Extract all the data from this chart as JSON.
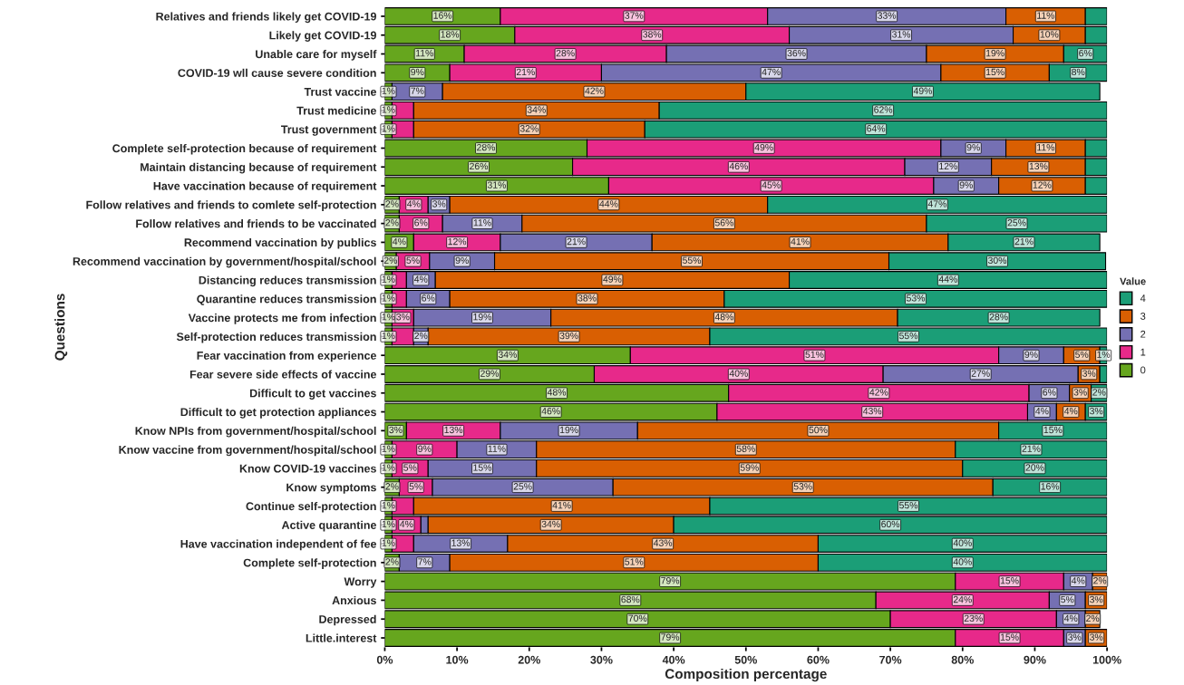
{
  "chart_data": {
    "type": "bar",
    "orientation": "horizontal",
    "stacked": true,
    "xlabel": "Composition percentage",
    "ylabel": "Questions",
    "legend_title": "Value",
    "legend": "right",
    "grid": false,
    "categories": [
      "Relatives and friends likely get COVID-19",
      "Likely get COVID-19",
      "Unable care for myself",
      "COVID-19 wll cause severe condition",
      "Trust vaccine",
      "Trust medicine",
      "Trust government",
      "Complete self-protection because of requirement",
      "Maintain distancing because of requirement",
      "Have vaccination because of requirement",
      "Follow relatives and friends to comlete self-protection",
      "Follow relatives and friends to be vaccinated",
      "Recommend vaccination by publics",
      "Recommend vaccination by government/hospital/school",
      "Distancing reduces transmission",
      "Quarantine reduces transmission",
      "Vaccine protects me from infection",
      "Self-protection reduces transmission",
      "Fear vaccination from experience",
      "Fear severe side effects of vaccine",
      "Difficult to get vaccines",
      "Difficult to get protection appliances",
      "Know NPIs from government/hospital/school",
      "Know vaccine from government/hospital/school",
      "Know COVID-19 vaccines",
      "Know symptoms",
      "Continue self-protection",
      "Active quarantine",
      "Have vaccination independent of fee",
      "Complete self-protection",
      "Worry",
      "Anxious",
      "Depressed",
      "Little.interest"
    ],
    "xlim": [
      0,
      100
    ],
    "xticks": [
      {
        "value": 0,
        "label": "0%"
      },
      {
        "value": 10,
        "label": "10%"
      },
      {
        "value": 20,
        "label": "20%"
      },
      {
        "value": 30,
        "label": "30%"
      },
      {
        "value": 40,
        "label": "40%"
      },
      {
        "value": 50,
        "label": "50%"
      },
      {
        "value": 60,
        "label": "60%"
      },
      {
        "value": 70,
        "label": "70%"
      },
      {
        "value": 80,
        "label": "80%"
      },
      {
        "value": 90,
        "label": "90%"
      },
      {
        "value": 100,
        "label": "100%"
      }
    ],
    "series": [
      {
        "name": "0",
        "color": "#66a61e",
        "values": [
          16,
          18,
          11,
          9,
          1,
          1,
          1,
          28,
          26,
          31,
          2,
          2,
          4,
          1.6,
          1,
          1,
          1,
          1,
          34,
          29,
          47.6,
          46,
          3,
          1,
          1,
          2,
          1,
          1,
          1,
          2,
          79,
          68,
          70,
          79
        ],
        "value_labels": [
          "16%",
          "18%",
          "11%",
          "9%",
          "1%",
          "1%",
          "1%",
          "28%",
          "26%",
          "31%",
          "2%",
          "2%",
          "4%",
          "2%",
          "1%",
          "1%",
          "1%",
          "1%",
          "34%",
          "29%",
          "48%",
          "46%",
          "3%",
          "1%",
          "1%",
          "2%",
          "1%",
          "1%",
          "1%",
          "2%",
          "79%",
          "68%",
          "70%",
          "79%"
        ]
      },
      {
        "name": "1",
        "color": "#e7298a",
        "values": [
          37,
          38,
          28,
          21,
          null,
          3,
          3,
          49,
          46,
          45,
          4,
          6,
          12,
          4.6,
          2,
          2,
          3,
          3,
          51,
          40,
          41.6,
          43,
          13,
          9,
          5,
          4.6,
          3,
          4,
          3,
          null,
          15,
          24,
          23,
          15
        ],
        "value_labels": [
          "37%",
          "38%",
          "28%",
          "21%",
          null,
          null,
          null,
          "49%",
          "46%",
          "45%",
          "4%",
          "6%",
          "12%",
          "5%",
          null,
          null,
          "3%",
          null,
          "51%",
          "40%",
          "42%",
          "43%",
          "13%",
          "9%",
          "5%",
          "5%",
          null,
          "4%",
          null,
          null,
          "15%",
          "24%",
          "23%",
          "15%"
        ]
      },
      {
        "name": "2",
        "color": "#7570b3",
        "values": [
          33,
          31,
          36,
          47,
          7,
          null,
          null,
          9,
          12,
          9,
          3,
          11,
          21,
          9,
          4,
          6,
          19,
          2,
          9,
          27,
          5.6,
          4,
          19,
          11,
          15,
          25,
          null,
          1,
          13,
          7,
          4,
          5,
          4,
          3
        ],
        "value_labels": [
          "33%",
          "31%",
          "36%",
          "47%",
          "7%",
          null,
          null,
          "9%",
          "12%",
          "9%",
          "3%",
          "11%",
          "21%",
          "9%",
          "4%",
          "6%",
          "19%",
          "2%",
          "9%",
          "27%",
          "6%",
          "4%",
          "19%",
          "11%",
          "15%",
          "25%",
          null,
          null,
          "13%",
          "7%",
          "4%",
          "5%",
          "4%",
          "3%"
        ]
      },
      {
        "name": "3",
        "color": "#d95f02",
        "values": [
          11,
          10,
          19,
          15,
          42,
          34,
          32,
          11,
          13,
          12,
          44,
          56,
          41,
          54.6,
          49,
          38,
          48,
          39,
          5,
          3,
          3,
          4,
          50,
          58,
          59,
          52.6,
          41,
          34,
          43,
          51,
          2,
          3,
          2,
          3
        ],
        "value_labels": [
          "11%",
          "10%",
          "19%",
          "15%",
          "42%",
          "34%",
          "32%",
          "11%",
          "13%",
          "12%",
          "44%",
          "56%",
          "41%",
          "55%",
          "49%",
          "38%",
          "48%",
          "39%",
          "5%",
          "3%",
          "3%",
          "4%",
          "50%",
          "58%",
          "59%",
          "53%",
          "41%",
          "34%",
          "43%",
          "51%",
          "2%",
          "3%",
          "2%",
          "3%"
        ]
      },
      {
        "name": "4",
        "color": "#1b9e77",
        "values": [
          3,
          3,
          6,
          8,
          49,
          62,
          64,
          3,
          3,
          3,
          47,
          25,
          21,
          30,
          44,
          53,
          28,
          55,
          1,
          1,
          2.2,
          3,
          15,
          21,
          20,
          15.8,
          55,
          60,
          40,
          40,
          null,
          null,
          null,
          null
        ],
        "value_labels": [
          null,
          null,
          "6%",
          "8%",
          "49%",
          "62%",
          "64%",
          null,
          null,
          null,
          "47%",
          "25%",
          "21%",
          "30%",
          "44%",
          "53%",
          "28%",
          "55%",
          "1%",
          null,
          "2%",
          "3%",
          "15%",
          "21%",
          "20%",
          "16%",
          "55%",
          "60%",
          "40%",
          "40%",
          null,
          null,
          null,
          null
        ]
      }
    ]
  }
}
